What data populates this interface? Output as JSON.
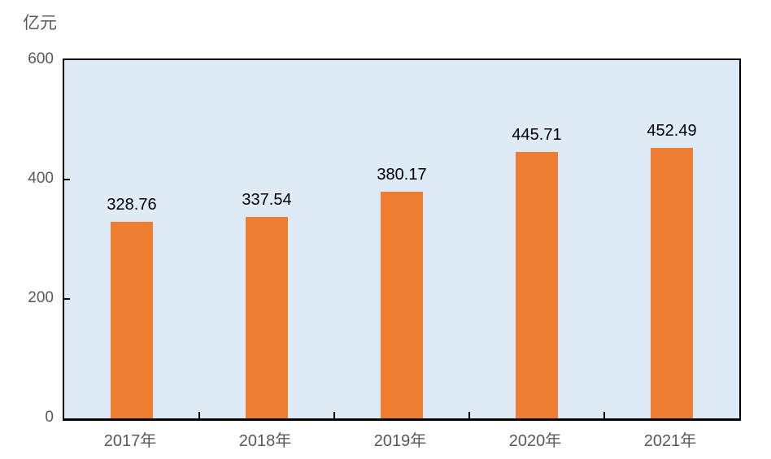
{
  "chart_data": {
    "type": "bar",
    "title": "亿元",
    "ylabel": "亿元",
    "xlabel": "",
    "categories": [
      "2017年",
      "2018年",
      "2019年",
      "2020年",
      "2021年"
    ],
    "values": [
      328.76,
      337.54,
      380.17,
      445.71,
      452.49
    ],
    "data_labels": [
      "328.76",
      "337.54",
      "380.17",
      "445.71",
      "452.49"
    ],
    "ylim": [
      0,
      600
    ],
    "yticks": [
      0,
      200,
      400,
      600
    ],
    "grid": false,
    "legend_position": "none",
    "bar_color": "#ED7D31",
    "plot_bg_color": "#DEEAF6",
    "axis_line_color": "#000000",
    "axis_label_color": "#595959",
    "value_label_color": "#000000"
  }
}
